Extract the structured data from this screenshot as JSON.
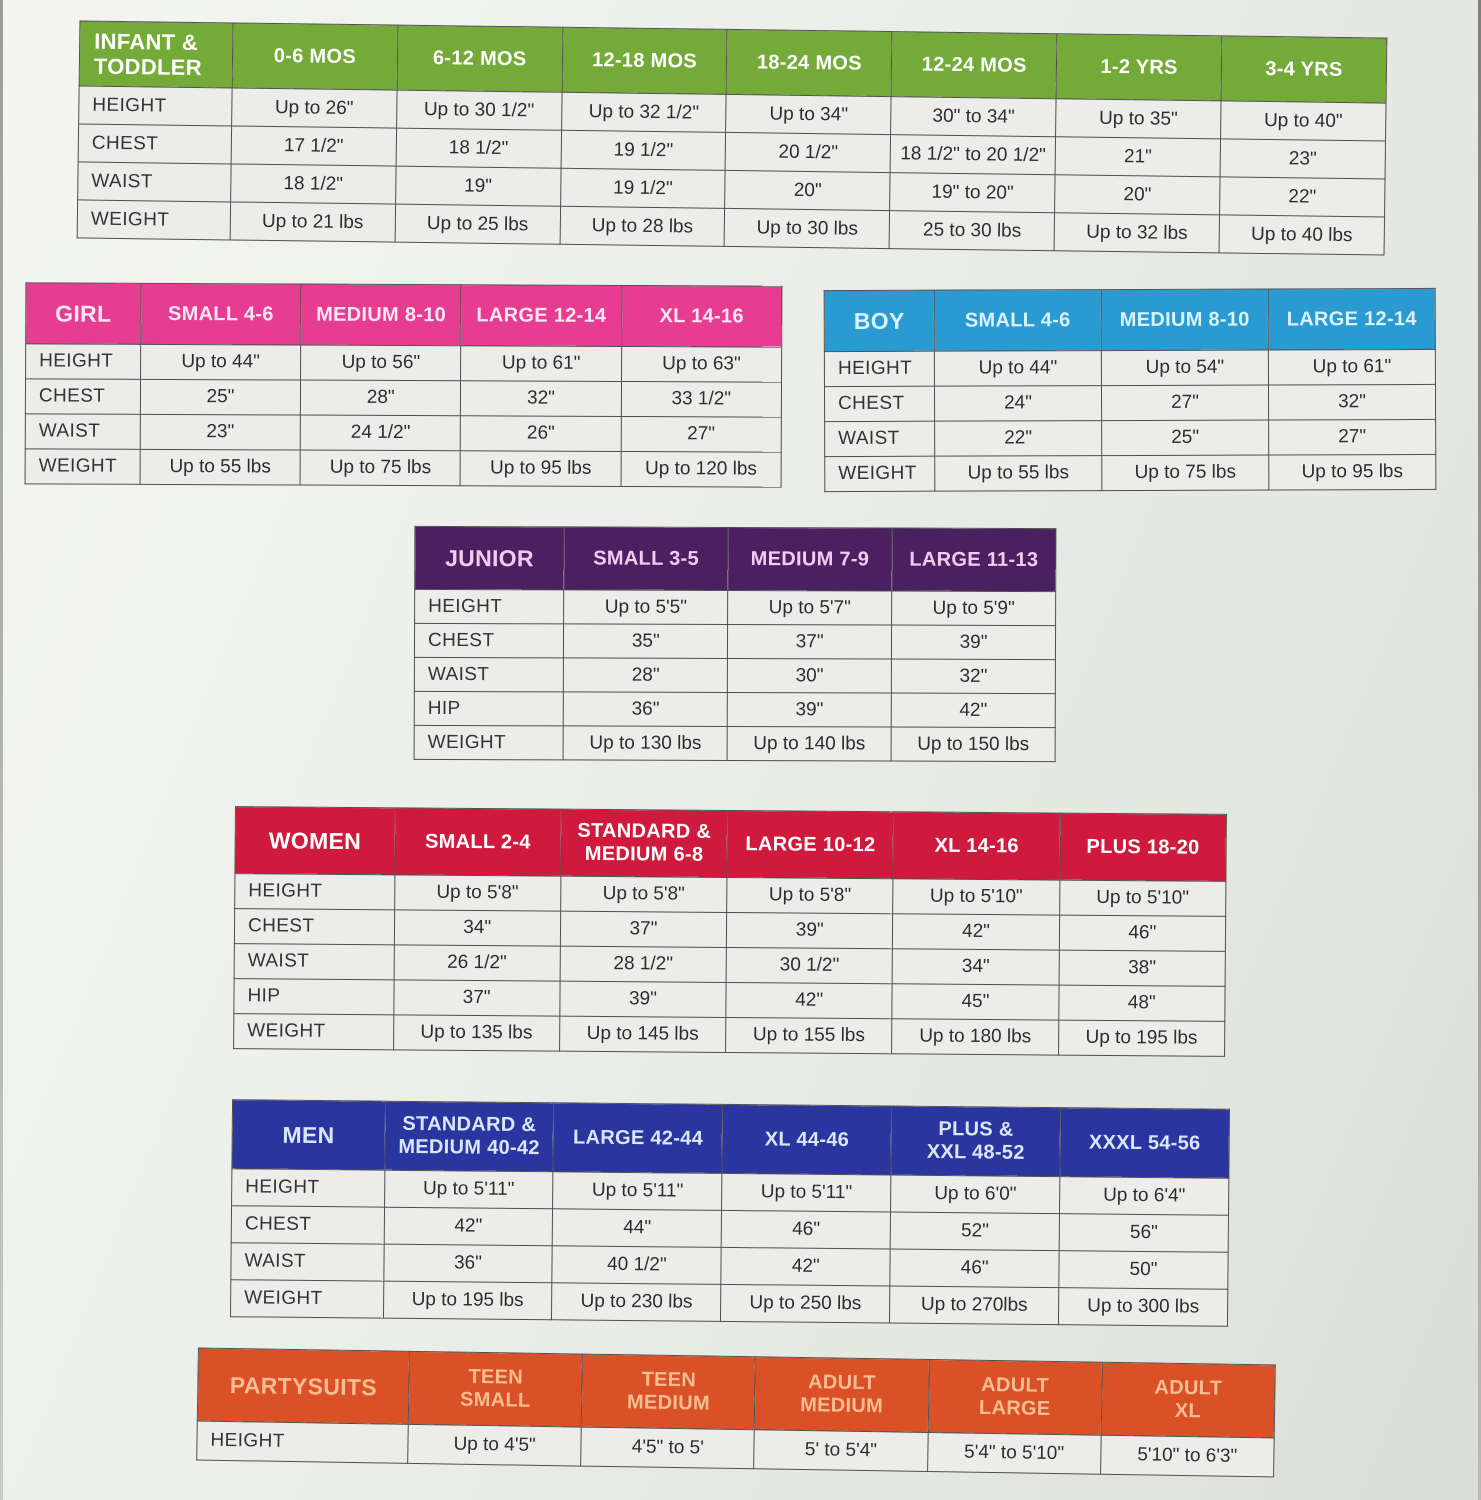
{
  "tables": [
    {
      "id": "infant",
      "title": "INFANT &\nTODDLER",
      "colors": {
        "header_bg": "#74aa37",
        "header_text": "#ffffff"
      },
      "columns": [
        "0-6 MOS",
        "6-12 MOS",
        "12-18 MOS",
        "18-24 MOS",
        "12-24 MOS",
        "1-2 YRS",
        "3-4 YRS"
      ],
      "rows": [
        {
          "label": "HEIGHT",
          "values": [
            "Up to 26\"",
            "Up to 30 1/2\"",
            "Up to 32 1/2\"",
            "Up to 34\"",
            "30\" to 34\"",
            "Up to 35\"",
            "Up to 40\""
          ]
        },
        {
          "label": "CHEST",
          "values": [
            "17 1/2\"",
            "18 1/2\"",
            "19 1/2\"",
            "20 1/2\"",
            "18 1/2\" to 20 1/2\"",
            "21\"",
            "23\""
          ]
        },
        {
          "label": "WAIST",
          "values": [
            "18 1/2\"",
            "19\"",
            "19 1/2\"",
            "20\"",
            "19\" to 20\"",
            "20\"",
            "22\""
          ]
        },
        {
          "label": "WEIGHT",
          "values": [
            "Up to 21 lbs",
            "Up to 25 lbs",
            "Up to 28 lbs",
            "Up to 30 lbs",
            "25 to 30 lbs",
            "Up to 32 lbs",
            "Up to 40 lbs"
          ]
        }
      ]
    },
    {
      "id": "girl",
      "title": "GIRL",
      "colors": {
        "header_bg": "#e63d92",
        "header_text": "#ffe6f3"
      },
      "columns": [
        "SMALL 4-6",
        "MEDIUM 8-10",
        "LARGE 12-14",
        "XL 14-16"
      ],
      "rows": [
        {
          "label": "HEIGHT",
          "values": [
            "Up to 44\"",
            "Up to 56\"",
            "Up to 61\"",
            "Up to 63\""
          ]
        },
        {
          "label": "CHEST",
          "values": [
            "25\"",
            "28\"",
            "32\"",
            "33 1/2\""
          ]
        },
        {
          "label": "WAIST",
          "values": [
            "23\"",
            "24 1/2\"",
            "26\"",
            "27\""
          ]
        },
        {
          "label": "WEIGHT",
          "values": [
            "Up to 55 lbs",
            "Up to 75 lbs",
            "Up to 95 lbs",
            "Up to 120 lbs"
          ]
        }
      ]
    },
    {
      "id": "boy",
      "title": "BOY",
      "colors": {
        "header_bg": "#2a9ad2",
        "header_text": "#daf2fd"
      },
      "columns": [
        "SMALL 4-6",
        "MEDIUM 8-10",
        "LARGE 12-14"
      ],
      "rows": [
        {
          "label": "HEIGHT",
          "values": [
            "Up to 44\"",
            "Up to 54\"",
            "Up to 61\""
          ]
        },
        {
          "label": "CHEST",
          "values": [
            "24\"",
            "27\"",
            "32\""
          ]
        },
        {
          "label": "WAIST",
          "values": [
            "22\"",
            "25\"",
            "27\""
          ]
        },
        {
          "label": "WEIGHT",
          "values": [
            "Up to 55 lbs",
            "Up to 75 lbs",
            "Up to 95 lbs"
          ]
        }
      ]
    },
    {
      "id": "junior",
      "title": "JUNIOR",
      "colors": {
        "header_bg": "#4a2060",
        "header_text": "#f2ccf0"
      },
      "columns": [
        "SMALL 3-5",
        "MEDIUM 7-9",
        "LARGE 11-13"
      ],
      "rows": [
        {
          "label": "HEIGHT",
          "values": [
            "Up to 5'5\"",
            "Up to 5'7\"",
            "Up to 5'9\""
          ]
        },
        {
          "label": "CHEST",
          "values": [
            "35\"",
            "37\"",
            "39\""
          ]
        },
        {
          "label": "WAIST",
          "values": [
            "28\"",
            "30\"",
            "32\""
          ]
        },
        {
          "label": "HIP",
          "values": [
            "36\"",
            "39\"",
            "42\""
          ]
        },
        {
          "label": "WEIGHT",
          "values": [
            "Up to 130 lbs",
            "Up to 140 lbs",
            "Up to 150 lbs"
          ]
        }
      ]
    },
    {
      "id": "women",
      "title": "WOMEN",
      "colors": {
        "header_bg": "#d01a3d",
        "header_text": "#ffffff"
      },
      "columns": [
        "SMALL 2-4",
        "STANDARD &\nMEDIUM 6-8",
        "LARGE 10-12",
        "XL 14-16",
        "PLUS 18-20"
      ],
      "rows": [
        {
          "label": "HEIGHT",
          "values": [
            "Up to 5'8\"",
            "Up to 5'8\"",
            "Up to 5'8\"",
            "Up to 5'10\"",
            "Up to 5'10\""
          ]
        },
        {
          "label": "CHEST",
          "values": [
            "34\"",
            "37\"",
            "39\"",
            "42\"",
            "46\""
          ]
        },
        {
          "label": "WAIST",
          "values": [
            "26 1/2\"",
            "28 1/2\"",
            "30 1/2\"",
            "34\"",
            "38\""
          ]
        },
        {
          "label": "HIP",
          "values": [
            "37\"",
            "39\"",
            "42\"",
            "45\"",
            "48\""
          ]
        },
        {
          "label": "WEIGHT",
          "values": [
            "Up to 135 lbs",
            "Up to 145 lbs",
            "Up to 155 lbs",
            "Up to 180 lbs",
            "Up to 195 lbs"
          ]
        }
      ]
    },
    {
      "id": "men",
      "title": "MEN",
      "colors": {
        "header_bg": "#2b35a0",
        "header_text": "#d9e6fb"
      },
      "columns": [
        "STANDARD &\nMEDIUM 40-42",
        "LARGE 42-44",
        "XL 44-46",
        "PLUS &\nXXL 48-52",
        "XXXL 54-56"
      ],
      "rows": [
        {
          "label": "HEIGHT",
          "values": [
            "Up to 5'11\"",
            "Up to 5'11\"",
            "Up to 5'11\"",
            "Up to 6'0\"",
            "Up to 6'4\""
          ]
        },
        {
          "label": "CHEST",
          "values": [
            "42\"",
            "44\"",
            "46\"",
            "52\"",
            "56\""
          ]
        },
        {
          "label": "WAIST",
          "values": [
            "36\"",
            "40 1/2\"",
            "42\"",
            "46\"",
            "50\""
          ]
        },
        {
          "label": "WEIGHT",
          "values": [
            "Up to 195 lbs",
            "Up to 230 lbs",
            "Up to 250 lbs",
            "Up to 270lbs",
            "Up to 300 lbs"
          ]
        }
      ]
    },
    {
      "id": "party",
      "title": "PARTYSUITS",
      "colors": {
        "header_bg": "#da5127",
        "header_text": "#f9bd91"
      },
      "columns": [
        "TEEN\nSMALL",
        "TEEN\nMEDIUM",
        "ADULT\nMEDIUM",
        "ADULT\nLARGE",
        "ADULT\nXL"
      ],
      "rows": [
        {
          "label": "HEIGHT",
          "values": [
            "Up to 4'5\"",
            "4'5\" to 5'",
            "5' to 5'4\"",
            "5'4\" to 5'10\"",
            "5'10\" to 6'3\""
          ]
        }
      ]
    }
  ]
}
